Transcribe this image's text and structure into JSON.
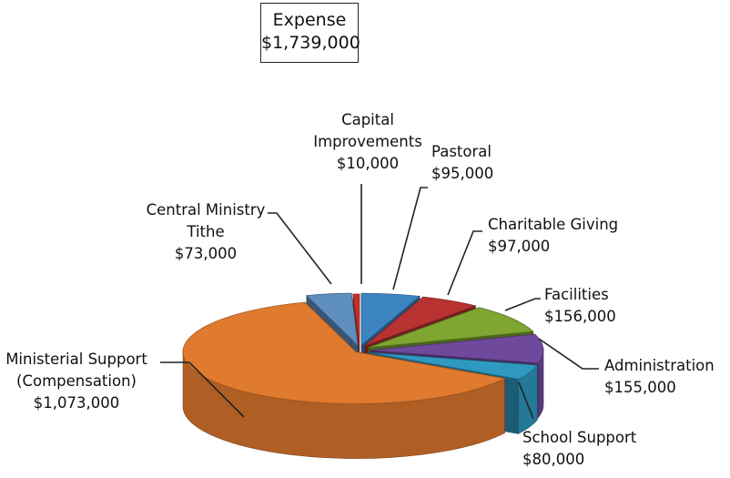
{
  "chart_data": {
    "type": "pie",
    "title": "Expense",
    "total": "$1,739,000",
    "slices": [
      {
        "category": "Pastoral",
        "value": 95000,
        "value_label": "$95,000",
        "color": "#3d84c2"
      },
      {
        "category": "Charitable Giving",
        "value": 97000,
        "value_label": "$97,000",
        "color": "#b83232"
      },
      {
        "category": "Facilities",
        "value": 156000,
        "value_label": "$156,000",
        "color": "#7ea630"
      },
      {
        "category": "Administration",
        "value": 155000,
        "value_label": "$155,000",
        "color": "#6f4a9c"
      },
      {
        "category": "School Support",
        "value": 80000,
        "value_label": "$80,000",
        "color": "#2f9ac1"
      },
      {
        "category": "Ministerial Support (Compensation)",
        "value": 1073000,
        "value_label": "$1,073,000",
        "color": "#e07a2e"
      },
      {
        "category": "Central Ministry Tithe",
        "value": 73000,
        "value_label": "$73,000",
        "color": "#5f8fbf"
      },
      {
        "category": "Capital Improvements",
        "value": 10000,
        "value_label": "$10,000",
        "color": "#c8302a"
      }
    ],
    "labels": [
      {
        "lines": [
          "Pastoral",
          "$95,000"
        ]
      },
      {
        "lines": [
          "Charitable Giving",
          "$97,000"
        ]
      },
      {
        "lines": [
          "Facilities",
          "$156,000"
        ]
      },
      {
        "lines": [
          "Administration",
          "$155,000"
        ]
      },
      {
        "lines": [
          "School Support",
          "$80,000"
        ]
      },
      {
        "lines": [
          "Ministerial Support",
          "(Compensation)",
          "$1,073,000"
        ]
      },
      {
        "lines": [
          "Central Ministry",
          "Tithe",
          "$73,000"
        ]
      },
      {
        "lines": [
          "Capital",
          "Improvements",
          "$10,000"
        ]
      }
    ]
  }
}
